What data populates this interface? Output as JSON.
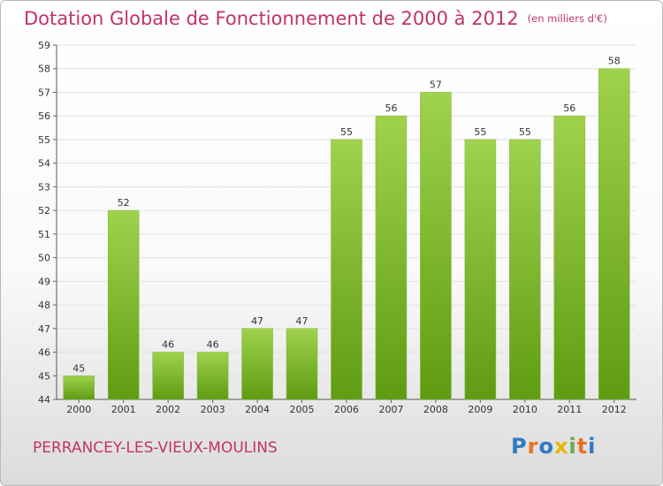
{
  "header": {
    "title": "Dotation Globale de Fonctionnement de 2000 à 2012",
    "unit": "(en milliers d'€)"
  },
  "footer": {
    "commune": "PERRANCEY-LES-VIEUX-MOULINS",
    "brand_letters": [
      "P",
      "r",
      "o",
      "x",
      "i",
      "t",
      "i"
    ],
    "brand_colors": [
      "#2f7bbf",
      "#e8731c",
      "#2f7bbf",
      "#e6b800",
      "#6aa84f",
      "#e8731c",
      "#2f7bbf"
    ]
  },
  "colors": {
    "accent": "#c2336a",
    "bar_top": "#9fd24d",
    "bar_bottom": "#5f9c12",
    "grid": "#e2e2e2"
  },
  "chart_data": {
    "type": "bar",
    "title": "Dotation Globale de Fonctionnement de 2000 à 2012",
    "subtitle": "(en milliers d'€)",
    "xlabel": "",
    "ylabel": "",
    "categories": [
      "2000",
      "2001",
      "2002",
      "2003",
      "2004",
      "2005",
      "2006",
      "2007",
      "2008",
      "2009",
      "2010",
      "2011",
      "2012"
    ],
    "values": [
      45,
      52,
      46,
      46,
      47,
      47,
      55,
      56,
      57,
      55,
      55,
      56,
      58
    ],
    "ylim": [
      44,
      59
    ],
    "yticks": [
      44,
      45,
      46,
      47,
      48,
      49,
      50,
      51,
      52,
      53,
      54,
      55,
      56,
      57,
      58,
      59
    ],
    "grid": true,
    "legend": "none"
  }
}
